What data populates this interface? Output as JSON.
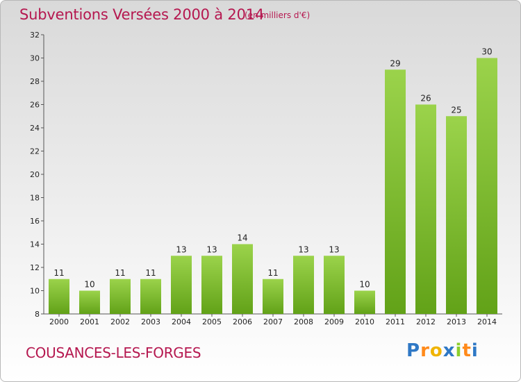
{
  "chart_data": {
    "type": "bar",
    "title": "Subventions Versées 2000 à 2014",
    "subtitle": "(en milliers d'€)",
    "footer_label": "COUSANCES-LES-FORGES",
    "brand": "Proxiti",
    "categories": [
      "2000",
      "2001",
      "2002",
      "2003",
      "2004",
      "2005",
      "2006",
      "2007",
      "2008",
      "2009",
      "2010",
      "2011",
      "2012",
      "2013",
      "2014"
    ],
    "values": [
      11,
      10,
      11,
      11,
      13,
      13,
      14,
      11,
      13,
      13,
      10,
      29,
      26,
      25,
      30
    ],
    "ylim": [
      8,
      32
    ],
    "yticks": [
      8,
      10,
      12,
      14,
      16,
      18,
      20,
      22,
      24,
      26,
      28,
      30,
      32
    ],
    "grid": false,
    "bar_color": "#7cc22e",
    "title_color": "#b5174f"
  }
}
